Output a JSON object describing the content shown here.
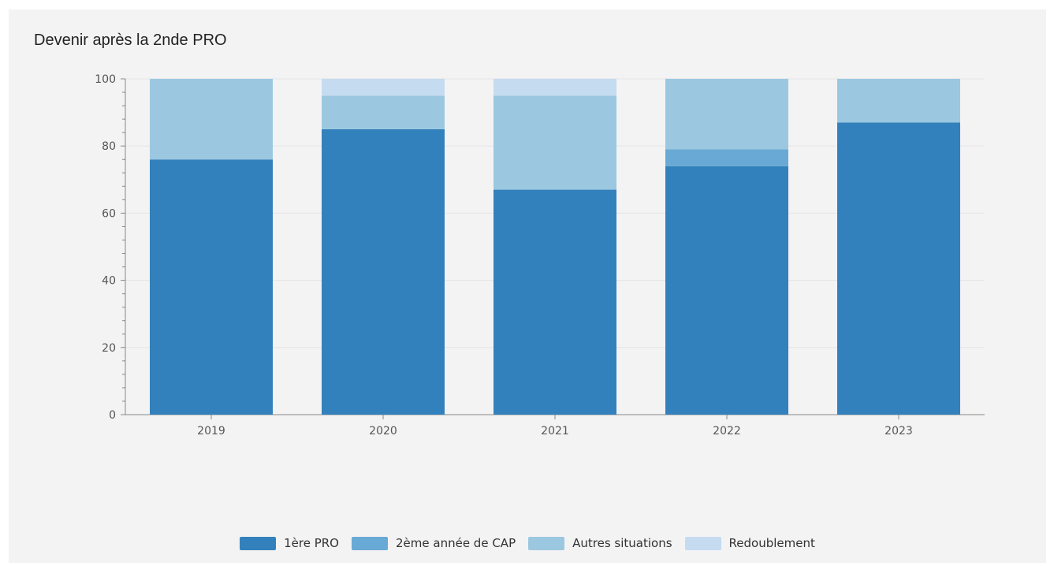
{
  "chart_data": {
    "type": "bar",
    "stacked": true,
    "title": "Devenir après la 2nde PRO",
    "xlabel": "",
    "ylabel": "",
    "categories": [
      "2019",
      "2020",
      "2021",
      "2022",
      "2023"
    ],
    "ylim": [
      0,
      100
    ],
    "yticks": [
      "0",
      "20",
      "40",
      "60",
      "80",
      "100"
    ],
    "grid": true,
    "legend_position": "bottom",
    "series": [
      {
        "name": "1ère PRO",
        "color": "#3381bc",
        "values": [
          76,
          85,
          67,
          74,
          87
        ]
      },
      {
        "name": "2ème année de CAP",
        "color": "#69a9d5",
        "values": [
          0,
          0,
          0,
          5,
          0
        ]
      },
      {
        "name": "Autres situations",
        "color": "#9bc8e0",
        "values": [
          24,
          10,
          28,
          21,
          13
        ]
      },
      {
        "name": "Redoublement",
        "color": "#c5dbf0",
        "values": [
          0,
          5,
          5,
          0,
          0
        ]
      }
    ]
  }
}
